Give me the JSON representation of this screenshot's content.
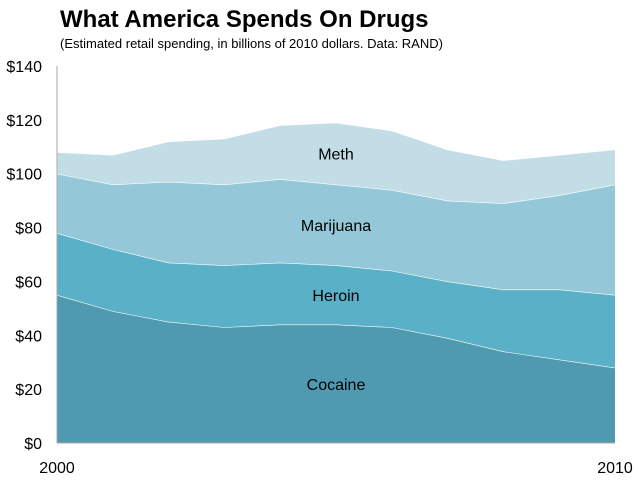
{
  "chart_data": {
    "type": "area",
    "stacked": true,
    "title": "What America Spends On Drugs",
    "subtitle": "(Estimated retail spending, in billions of 2010 dollars. Data: RAND)",
    "xlabel": "",
    "ylabel": "",
    "x": [
      2000,
      2001,
      2002,
      2003,
      2004,
      2005,
      2006,
      2007,
      2008,
      2009,
      2010
    ],
    "x_tick_labels": [
      "2000",
      "2010"
    ],
    "y_tick_labels": [
      "$0",
      "$20",
      "$40",
      "$60",
      "$80",
      "$100",
      "$120",
      "$140"
    ],
    "ylim": [
      0,
      140
    ],
    "grid": false,
    "series": [
      {
        "name": "Cocaine",
        "color": "#4f9ab0",
        "values": [
          55,
          49,
          45,
          43,
          44,
          44,
          43,
          39,
          34,
          31,
          28
        ]
      },
      {
        "name": "Heroin",
        "color": "#5ab0c6",
        "values": [
          23,
          23,
          22,
          23,
          23,
          22,
          21,
          21,
          23,
          26,
          27
        ]
      },
      {
        "name": "Marijuana",
        "color": "#94c8d8",
        "values": [
          22,
          24,
          30,
          30,
          31,
          30,
          30,
          30,
          32,
          35,
          41
        ]
      },
      {
        "name": "Meth",
        "color": "#c3dde6",
        "values": [
          8,
          11,
          15,
          17,
          20,
          23,
          22,
          19,
          16,
          15,
          13
        ]
      }
    ]
  }
}
